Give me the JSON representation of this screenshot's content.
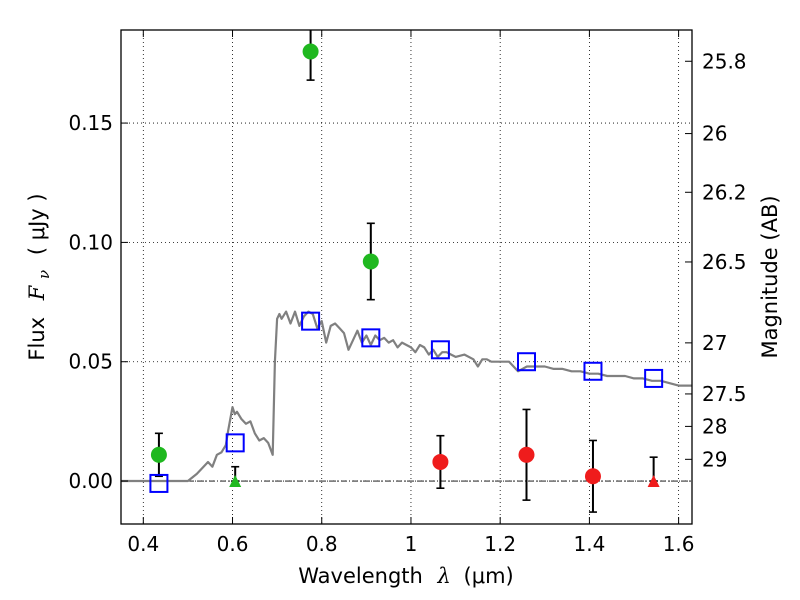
{
  "chart_data": {
    "type": "scatter",
    "xlabel": {
      "text": "Wavelength",
      "symbol": "λ",
      "unit": "(μm)"
    },
    "ylabel": {
      "text": "Flux",
      "symbol": "F",
      "subscript": "ν",
      "unit": "( μJy )"
    },
    "y2label": "Magnitude (AB)",
    "xlim": [
      0.35,
      1.63
    ],
    "ylim": [
      -0.018,
      0.189
    ],
    "x_ticks": [
      0.4,
      0.6,
      0.8,
      1.0,
      1.2,
      1.4,
      1.6
    ],
    "x_tick_labels": [
      "0.4",
      "0.6",
      "0.8",
      "1",
      "1.2",
      "1.4",
      "1.6"
    ],
    "y_ticks": [
      0.0,
      0.05,
      0.1,
      0.15
    ],
    "y_tick_labels": [
      "0.00",
      "0.05",
      "0.10",
      "0.15"
    ],
    "mag_ticks": [
      {
        "label": "25.8",
        "flux": 0.1759
      },
      {
        "label": "26",
        "flux": 0.1456
      },
      {
        "label": "26.2",
        "flux": 0.121
      },
      {
        "label": "26.5",
        "flux": 0.0918
      },
      {
        "label": "27",
        "flux": 0.0579
      },
      {
        "label": "27.5",
        "flux": 0.0365
      },
      {
        "label": "28",
        "flux": 0.0229
      },
      {
        "label": "29",
        "flux": 0.0091
      }
    ],
    "grid": true,
    "zero_line": true,
    "colors": {
      "green": "#1fb81f",
      "red": "#ef1c1c",
      "blue": "#0000ff",
      "model": "#808080",
      "error": "#000000"
    },
    "series": [
      {
        "marker": "circle",
        "color": "green",
        "points": [
          {
            "x": 0.435,
            "y": 0.011,
            "yerr": 0.009
          },
          {
            "x": 0.775,
            "y": 0.18,
            "yerr": 0.012
          },
          {
            "x": 0.91,
            "y": 0.092,
            "yerr": 0.016
          }
        ]
      },
      {
        "marker": "triangle",
        "color": "green",
        "points": [
          {
            "x": 0.606,
            "y": 0.0,
            "yerr_low": 0.0,
            "yerr_high": 0.006
          }
        ]
      },
      {
        "marker": "circle",
        "color": "red",
        "points": [
          {
            "x": 1.066,
            "y": 0.008,
            "yerr": 0.011
          },
          {
            "x": 1.259,
            "y": 0.011,
            "yerr": 0.019
          },
          {
            "x": 1.408,
            "y": 0.002,
            "yerr": 0.015
          }
        ]
      },
      {
        "marker": "triangle",
        "color": "red",
        "points": [
          {
            "x": 1.544,
            "y": 0.0,
            "yerr_low": 0.0,
            "yerr_high": 0.01
          }
        ]
      },
      {
        "marker": "square-open",
        "color": "blue",
        "points": [
          {
            "x": 0.435,
            "y": -0.001
          },
          {
            "x": 0.606,
            "y": 0.016
          },
          {
            "x": 0.775,
            "y": 0.067
          },
          {
            "x": 0.91,
            "y": 0.06
          },
          {
            "x": 1.066,
            "y": 0.055
          },
          {
            "x": 1.259,
            "y": 0.05
          },
          {
            "x": 1.408,
            "y": 0.046
          },
          {
            "x": 1.544,
            "y": 0.043
          }
        ]
      }
    ],
    "model_spectrum": {
      "color": "model",
      "x": [
        0.35,
        0.5,
        0.52,
        0.53,
        0.545,
        0.555,
        0.565,
        0.575,
        0.585,
        0.59,
        0.595,
        0.6,
        0.605,
        0.61,
        0.62,
        0.63,
        0.64,
        0.65,
        0.66,
        0.67,
        0.68,
        0.69,
        0.695,
        0.7,
        0.705,
        0.71,
        0.72,
        0.73,
        0.74,
        0.75,
        0.76,
        0.77,
        0.78,
        0.79,
        0.8,
        0.81,
        0.82,
        0.83,
        0.84,
        0.85,
        0.86,
        0.87,
        0.88,
        0.89,
        0.9,
        0.91,
        0.92,
        0.93,
        0.94,
        0.95,
        0.96,
        0.97,
        0.98,
        0.99,
        1.0,
        1.01,
        1.02,
        1.03,
        1.04,
        1.05,
        1.06,
        1.07,
        1.08,
        1.09,
        1.1,
        1.12,
        1.14,
        1.15,
        1.16,
        1.17,
        1.18,
        1.19,
        1.2,
        1.22,
        1.24,
        1.26,
        1.28,
        1.3,
        1.32,
        1.34,
        1.36,
        1.38,
        1.4,
        1.42,
        1.44,
        1.46,
        1.48,
        1.5,
        1.52,
        1.54,
        1.56,
        1.58,
        1.6,
        1.63
      ],
      "y": [
        0.0,
        0.0,
        0.003,
        0.005,
        0.008,
        0.006,
        0.011,
        0.012,
        0.015,
        0.021,
        0.026,
        0.031,
        0.028,
        0.029,
        0.026,
        0.024,
        0.025,
        0.02,
        0.017,
        0.018,
        0.016,
        0.011,
        0.05,
        0.068,
        0.07,
        0.068,
        0.071,
        0.066,
        0.071,
        0.065,
        0.069,
        0.071,
        0.07,
        0.064,
        0.067,
        0.058,
        0.065,
        0.066,
        0.064,
        0.062,
        0.055,
        0.059,
        0.063,
        0.058,
        0.061,
        0.057,
        0.061,
        0.059,
        0.06,
        0.058,
        0.059,
        0.056,
        0.058,
        0.057,
        0.056,
        0.054,
        0.057,
        0.056,
        0.053,
        0.055,
        0.052,
        0.054,
        0.054,
        0.053,
        0.052,
        0.053,
        0.051,
        0.048,
        0.051,
        0.051,
        0.05,
        0.05,
        0.05,
        0.05,
        0.046,
        0.048,
        0.048,
        0.048,
        0.047,
        0.047,
        0.046,
        0.046,
        0.045,
        0.045,
        0.044,
        0.044,
        0.044,
        0.043,
        0.043,
        0.042,
        0.042,
        0.041,
        0.04,
        0.04
      ]
    }
  }
}
